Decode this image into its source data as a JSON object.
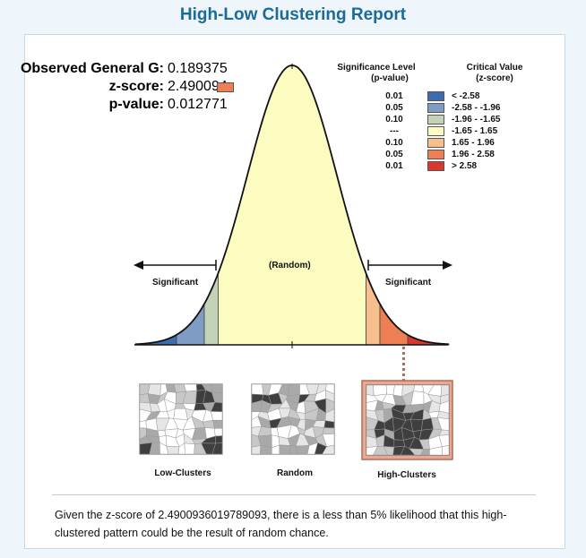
{
  "title": "High-Low Clustering Report",
  "stats": {
    "general_g_label": "Observed General G:",
    "general_g_value": "0.189375",
    "zscore_label": "z-score:",
    "zscore_value": "2.490094",
    "pvalue_label": "p-value:",
    "pvalue_value": "0.012771"
  },
  "legend": {
    "sig_header_line1": "Significance Level",
    "sig_header_line2": "(p-value)",
    "crit_header_line1": "Critical Value",
    "crit_header_line2": "(z-score)",
    "rows": [
      {
        "p": "0.01",
        "cv": "< -2.58",
        "color": "#3d6db0"
      },
      {
        "p": "0.05",
        "cv": "-2.58 - -1.96",
        "color": "#7f9dc4"
      },
      {
        "p": "0.10",
        "cv": "-1.96 - -1.65",
        "color": "#c4d3b8"
      },
      {
        "p": "---",
        "cv": "-1.65 - 1.65",
        "color": "#fdfcc0"
      },
      {
        "p": "0.10",
        "cv": "1.65 - 1.96",
        "color": "#f7bf8c"
      },
      {
        "p": "0.05",
        "cv": "1.96 - 2.58",
        "color": "#ee7f55"
      },
      {
        "p": "0.01",
        "cv": "> 2.58",
        "color": "#d8382f"
      }
    ]
  },
  "curve": {
    "significant_left": "Significant",
    "random": "(Random)",
    "significant_right": "Significant",
    "marker_color": "#e07050",
    "observed_z": 2.490094
  },
  "thumbnails": {
    "low": "Low-Clusters",
    "random": "Random",
    "high": "High-Clusters"
  },
  "summary": "Given the z-score of 2.4900936019789093, there is a less than 5% likelihood that this high-clustered pattern could be the result of random chance."
}
